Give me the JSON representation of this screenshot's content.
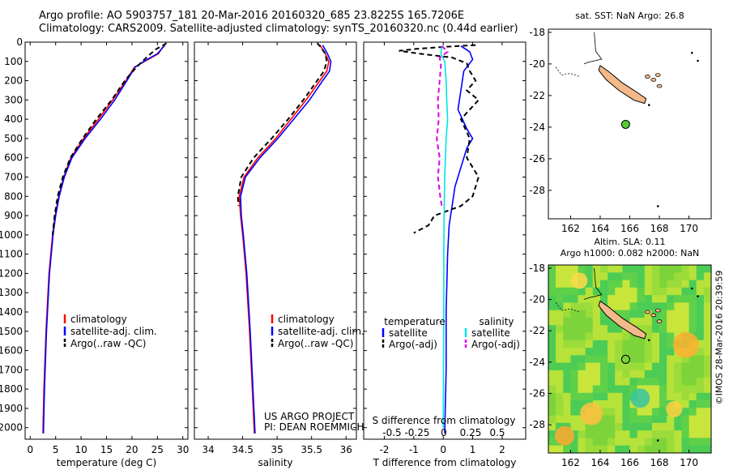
{
  "header": {
    "line1": "Argo profile: AO 5903757_181 20-Mar-2016 20160320_685 23.8225S 165.7206E",
    "line2": "Climatology: CARS2009. Satellite-adjusted climatology: synTS_20160320.nc (0.44d earlier)"
  },
  "footer_text": "©IMOS 28-Mar-2016 20:39:59",
  "colors": {
    "climatology": "#ff0000",
    "satellite": "#0000ff",
    "argo": "#000000",
    "sal_satellite": "#00e5e5",
    "sal_argo": "#e000e0",
    "land": "#f4b98a",
    "float": "#55cc33"
  },
  "chart_data": [
    {
      "type": "line",
      "panel": "temperature",
      "xlabel": "temperature (deg C)",
      "ylabel": "",
      "xlim": [
        -1,
        31
      ],
      "ylim": [
        2060,
        0
      ],
      "xticks": [
        0,
        5,
        10,
        15,
        20,
        25,
        30
      ],
      "yticks": [
        0,
        100,
        200,
        300,
        400,
        500,
        600,
        700,
        800,
        900,
        1000,
        1100,
        1200,
        1300,
        1400,
        1500,
        1600,
        1700,
        1800,
        1900,
        2000
      ],
      "legend": [
        "climatology",
        "satellite-adj. clim.",
        "Argo(..raw -QC)"
      ],
      "series": [
        {
          "name": "climatology",
          "color": "#ff0000",
          "style": "solid",
          "depth": [
            15,
            60,
            100,
            130,
            200,
            300,
            400,
            500,
            600,
            700,
            800,
            900,
            1000,
            1200,
            1500,
            1800,
            2030
          ],
          "values": [
            26.3,
            25.2,
            22.5,
            20.5,
            18.8,
            16.2,
            13.4,
            10.5,
            8.0,
            6.6,
            5.6,
            4.9,
            4.4,
            3.7,
            3.1,
            2.7,
            2.5
          ]
        },
        {
          "name": "satellite-adj. clim.",
          "color": "#0000ff",
          "style": "solid",
          "depth": [
            15,
            60,
            100,
            130,
            200,
            300,
            400,
            500,
            600,
            700,
            800,
            900,
            1000,
            1200,
            1500,
            1800,
            2030
          ],
          "values": [
            26.5,
            25.0,
            22.3,
            20.6,
            19.0,
            16.6,
            13.8,
            10.8,
            8.2,
            6.7,
            5.7,
            5.0,
            4.5,
            3.8,
            3.2,
            2.8,
            2.6
          ]
        },
        {
          "name": "Argo(..raw -QC)",
          "color": "#000000",
          "style": "dashed",
          "depth": [
            5,
            20,
            35,
            60,
            100,
            150,
            200,
            300,
            400,
            500,
            600,
            700,
            800,
            900,
            950,
            1000
          ],
          "values": [
            26.8,
            25.9,
            24.8,
            23.7,
            22.0,
            20.2,
            18.6,
            16.0,
            13.0,
            10.3,
            7.9,
            6.4,
            5.4,
            4.8,
            4.6,
            4.4
          ]
        }
      ]
    },
    {
      "type": "line",
      "panel": "salinity",
      "xlabel": "salinity",
      "ylabel": "",
      "xlim": [
        33.8,
        36.15
      ],
      "ylim": [
        2060,
        0
      ],
      "xticks": [
        34,
        34.5,
        35,
        35.5,
        36
      ],
      "legend": [
        "climatology",
        "satellite-adj. clim.",
        "Argo(..raw -QC)"
      ],
      "annotations": [
        "US ARGO PROJECT",
        "PI: DEAN ROEMMICH"
      ],
      "series": [
        {
          "name": "climatology",
          "color": "#ff0000",
          "style": "solid",
          "depth": [
            15,
            60,
            100,
            150,
            200,
            300,
            400,
            500,
            600,
            700,
            800,
            900,
            1000,
            1200,
            1500,
            1800,
            2030
          ],
          "values": [
            35.62,
            35.7,
            35.75,
            35.72,
            35.62,
            35.42,
            35.2,
            34.98,
            34.72,
            34.52,
            34.45,
            34.47,
            34.5,
            34.55,
            34.6,
            34.64,
            34.67
          ]
        },
        {
          "name": "satellite-adj. clim.",
          "color": "#0000ff",
          "style": "solid",
          "depth": [
            15,
            60,
            100,
            150,
            200,
            300,
            400,
            500,
            600,
            700,
            800,
            900,
            1000,
            1200,
            1500,
            1800,
            2030
          ],
          "values": [
            35.66,
            35.73,
            35.78,
            35.76,
            35.66,
            35.47,
            35.24,
            35.01,
            34.75,
            34.54,
            34.47,
            34.48,
            34.51,
            34.56,
            34.61,
            34.65,
            34.68
          ]
        },
        {
          "name": "Argo(..raw -QC)",
          "color": "#000000",
          "style": "dashed",
          "depth": [
            5,
            20,
            40,
            60,
            100,
            150,
            200,
            300,
            400,
            500,
            600,
            700,
            800,
            850
          ],
          "values": [
            35.58,
            35.62,
            35.66,
            35.7,
            35.72,
            35.68,
            35.58,
            35.38,
            35.16,
            34.92,
            34.66,
            34.48,
            34.43,
            34.44
          ]
        }
      ]
    },
    {
      "type": "line",
      "panel": "difference",
      "xlabel": "T difference from climatology",
      "x2label": "S difference from climatology",
      "xlim": [
        -2.7,
        2.8
      ],
      "ylim": [
        2060,
        0
      ],
      "xticks": [
        -2,
        -1,
        0,
        1,
        2
      ],
      "x2ticks": [
        "-0.5",
        "-0.25",
        "0",
        "0.25",
        "0.5"
      ],
      "legend_temperature": [
        "temperature",
        "satellite",
        "Argo(-adj)"
      ],
      "legend_salinity": [
        "salinity",
        "satellite",
        "Argo(-adj)"
      ],
      "series": [
        {
          "name": "temperature satellite",
          "color": "#0000ff",
          "style": "solid",
          "depth": [
            20,
            50,
            90,
            150,
            250,
            350,
            450,
            500,
            550,
            650,
            750,
            850,
            950,
            1100,
            1400,
            1700,
            2030
          ],
          "values": [
            0.6,
            0.9,
            1.0,
            0.7,
            0.6,
            0.5,
            0.8,
            1.0,
            0.8,
            0.6,
            0.4,
            0.3,
            0.2,
            0.15,
            0.1,
            0.1,
            0.05
          ]
        },
        {
          "name": "temperature Argo(-adj)",
          "color": "#000000",
          "style": "dashed",
          "depth": [
            15,
            25,
            35,
            45,
            60,
            80,
            110,
            150,
            200,
            250,
            300,
            400,
            500,
            600,
            700,
            800,
            850,
            900,
            950,
            990
          ],
          "values": [
            1.1,
            0.0,
            -0.9,
            -1.5,
            -0.8,
            0.3,
            0.8,
            0.9,
            1.1,
            0.8,
            1.2,
            0.6,
            0.9,
            0.8,
            1.2,
            1.0,
            0.6,
            -0.3,
            -0.5,
            -1.0
          ]
        },
        {
          "name": "salinity satellite",
          "color": "#00e5e5",
          "style": "solid",
          "depth": [
            20,
            60,
            100,
            200,
            300,
            400,
            500,
            700,
            900,
            1100,
            1400,
            1700,
            2000
          ],
          "values": [
            -0.05,
            -0.08,
            0.05,
            0.1,
            0.12,
            0.15,
            0.1,
            0.05,
            0.03,
            0.02,
            0.02,
            0.01,
            0.0
          ]
        },
        {
          "name": "salinity Argo(-adj)",
          "color": "#e000e0",
          "style": "dashed",
          "depth": [
            20,
            50,
            80,
            120,
            200,
            300,
            400,
            500,
            600,
            700,
            800,
            850
          ],
          "values": [
            -0.05,
            0.15,
            -0.12,
            -0.08,
            -0.12,
            -0.18,
            -0.15,
            -0.22,
            -0.12,
            -0.18,
            -0.1,
            -0.05
          ]
        }
      ]
    },
    {
      "type": "map",
      "panel": "sst_map",
      "title": "sat. SST: NaN  Argo: 26.8",
      "xlim": [
        160.5,
        171.5
      ],
      "ylim": [
        -29.8,
        -17.8
      ],
      "xticks": [
        162,
        164,
        166,
        168,
        170
      ],
      "yticks": [
        -18,
        -20,
        -22,
        -24,
        -26,
        -28
      ],
      "float_position": [
        165.7206,
        -23.8225
      ]
    },
    {
      "type": "heatmap",
      "panel": "sla_map",
      "title": "Altim. SLA: 0.11",
      "title2": "Argo h1000: 0.082  h2000: NaN",
      "xlim": [
        160.5,
        171.5
      ],
      "ylim": [
        -29.8,
        -17.8
      ],
      "xticks": [
        162,
        164,
        166,
        168,
        170
      ],
      "yticks": [
        -18,
        -20,
        -22,
        -24,
        -26,
        -28
      ],
      "float_position": [
        165.7206,
        -23.8225
      ]
    }
  ]
}
